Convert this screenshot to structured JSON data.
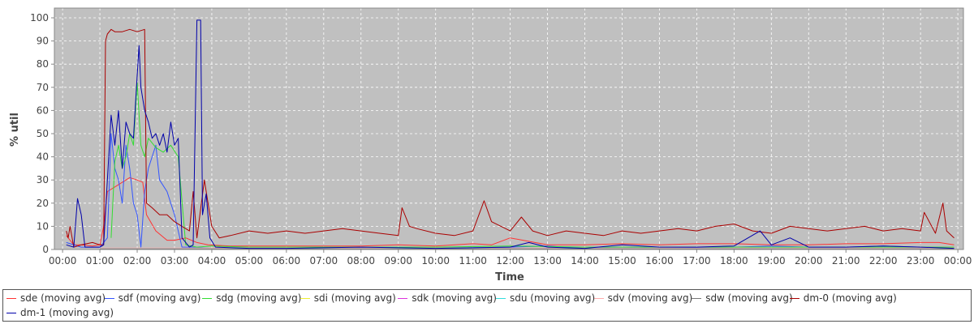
{
  "chart_data": {
    "type": "line",
    "title": "",
    "xlabel": "Time",
    "ylabel": "% util",
    "ylim": [
      0,
      100
    ],
    "xlim": [
      "00:00",
      "24:00"
    ],
    "yticks": [
      "0",
      "10",
      "20",
      "30",
      "40",
      "50",
      "60",
      "70",
      "80",
      "90",
      "100"
    ],
    "xticks": [
      "00:00",
      "01:00",
      "02:00",
      "03:00",
      "04:00",
      "05:00",
      "06:00",
      "07:00",
      "08:00",
      "09:00",
      "10:00",
      "11:00",
      "12:00",
      "13:00",
      "14:00",
      "15:00",
      "16:00",
      "17:00",
      "18:00",
      "19:00",
      "20:00",
      "21:00",
      "22:00",
      "23:00",
      "00:00"
    ],
    "grid": true,
    "legend_position": "bottom",
    "series": [
      {
        "name": "sde (moving avg)",
        "color": "#ff3333",
        "points": [
          [
            0.1,
            6
          ],
          [
            0.2,
            4
          ],
          [
            0.3,
            2
          ],
          [
            0.5,
            2
          ],
          [
            0.8,
            1.5
          ],
          [
            1.0,
            2
          ],
          [
            1.1,
            10
          ],
          [
            1.2,
            25
          ],
          [
            1.4,
            27
          ],
          [
            1.6,
            29
          ],
          [
            1.8,
            31
          ],
          [
            2.0,
            30
          ],
          [
            2.15,
            29
          ],
          [
            2.25,
            15
          ],
          [
            2.5,
            8
          ],
          [
            2.8,
            4
          ],
          [
            3.0,
            4
          ],
          [
            3.3,
            5
          ],
          [
            3.6,
            3
          ],
          [
            3.9,
            2
          ],
          [
            4.5,
            1.5
          ],
          [
            5,
            1.5
          ],
          [
            6,
            1.5
          ],
          [
            7,
            1.5
          ],
          [
            8,
            1.5
          ],
          [
            9,
            2
          ],
          [
            10,
            1.5
          ],
          [
            11,
            2.5
          ],
          [
            11.5,
            2
          ],
          [
            12,
            5
          ],
          [
            13,
            2
          ],
          [
            14,
            2
          ],
          [
            15,
            2.5
          ],
          [
            16,
            2
          ],
          [
            17,
            2.5
          ],
          [
            18,
            2.5
          ],
          [
            19,
            2
          ],
          [
            20,
            2
          ],
          [
            21,
            2.5
          ],
          [
            22,
            2.5
          ],
          [
            23,
            3
          ],
          [
            23.5,
            3
          ],
          [
            23.9,
            2
          ]
        ]
      },
      {
        "name": "sdf (moving avg)",
        "color": "#3355ff",
        "points": [
          [
            0.1,
            3
          ],
          [
            0.5,
            1
          ],
          [
            1.0,
            1
          ],
          [
            1.2,
            5
          ],
          [
            1.3,
            50
          ],
          [
            1.4,
            35
          ],
          [
            1.5,
            30
          ],
          [
            1.6,
            20
          ],
          [
            1.7,
            45
          ],
          [
            1.8,
            35
          ],
          [
            1.9,
            20
          ],
          [
            2.0,
            15
          ],
          [
            2.1,
            1
          ],
          [
            2.2,
            25
          ],
          [
            2.3,
            35
          ],
          [
            2.5,
            45
          ],
          [
            2.6,
            30
          ],
          [
            2.8,
            25
          ],
          [
            3.0,
            15
          ],
          [
            3.2,
            1
          ],
          [
            3.5,
            1
          ],
          [
            4,
            0.5
          ],
          [
            5,
            0.5
          ],
          [
            6,
            0.5
          ],
          [
            8,
            0.5
          ],
          [
            10,
            0.5
          ],
          [
            12,
            1
          ],
          [
            13,
            1.5
          ],
          [
            14,
            0.5
          ],
          [
            15,
            1
          ],
          [
            16,
            0.5
          ],
          [
            18,
            1
          ],
          [
            19,
            1.5
          ],
          [
            20,
            1
          ],
          [
            21,
            1
          ],
          [
            22,
            1.5
          ],
          [
            23,
            1
          ],
          [
            23.9,
            0.5
          ]
        ]
      },
      {
        "name": "sdg (moving avg)",
        "color": "#33dd33",
        "points": [
          [
            1.3,
            5
          ],
          [
            1.4,
            38
          ],
          [
            1.5,
            45
          ],
          [
            1.6,
            35
          ],
          [
            1.7,
            40
          ],
          [
            1.8,
            50
          ],
          [
            1.9,
            45
          ],
          [
            2.0,
            72
          ],
          [
            2.1,
            45
          ],
          [
            2.2,
            40
          ],
          [
            2.3,
            48
          ],
          [
            2.5,
            44
          ],
          [
            2.7,
            42
          ],
          [
            2.9,
            45
          ],
          [
            3.1,
            40
          ],
          [
            3.3,
            2
          ],
          [
            3.6,
            1
          ],
          [
            4,
            1.5
          ],
          [
            5,
            1
          ],
          [
            6,
            1
          ],
          [
            8,
            1
          ],
          [
            10,
            1
          ],
          [
            12,
            1.5
          ],
          [
            14,
            1
          ],
          [
            16,
            1
          ],
          [
            18,
            1
          ],
          [
            20,
            1
          ],
          [
            22,
            1
          ],
          [
            23.9,
            1
          ]
        ]
      },
      {
        "name": "sdi (moving avg)",
        "color": "#eeee33",
        "points": [
          [
            1.0,
            0.5
          ],
          [
            4,
            0.5
          ],
          [
            12,
            0.5
          ],
          [
            23.9,
            0.5
          ]
        ]
      },
      {
        "name": "sdk (moving avg)",
        "color": "#dd33dd",
        "points": [
          [
            1.0,
            0.3
          ],
          [
            4,
            0.3
          ],
          [
            12,
            0.3
          ],
          [
            23.9,
            0.3
          ]
        ]
      },
      {
        "name": "sdu (moving avg)",
        "color": "#33dddd",
        "points": [
          [
            1.0,
            0.4
          ],
          [
            4,
            0.4
          ],
          [
            12,
            0.4
          ],
          [
            23.9,
            0.4
          ]
        ]
      },
      {
        "name": "sdv (moving avg)",
        "color": "#ffaaaa",
        "points": [
          [
            1.0,
            0.6
          ],
          [
            4,
            0.6
          ],
          [
            12,
            0.6
          ],
          [
            23.9,
            0.6
          ]
        ]
      },
      {
        "name": "sdw (moving avg)",
        "color": "#777777",
        "points": [
          [
            1.0,
            0.2
          ],
          [
            4,
            0.2
          ],
          [
            12,
            0.2
          ],
          [
            23.9,
            0.2
          ]
        ]
      },
      {
        "name": "dm-0 (moving avg)",
        "color": "#aa0000",
        "points": [
          [
            0.1,
            8
          ],
          [
            0.15,
            5
          ],
          [
            0.2,
            10
          ],
          [
            0.3,
            1
          ],
          [
            0.5,
            2
          ],
          [
            0.8,
            3
          ],
          [
            1.0,
            2
          ],
          [
            1.1,
            2
          ],
          [
            1.15,
            90
          ],
          [
            1.2,
            93
          ],
          [
            1.3,
            95
          ],
          [
            1.4,
            94
          ],
          [
            1.6,
            94
          ],
          [
            1.8,
            95
          ],
          [
            2.0,
            94
          ],
          [
            2.2,
            95
          ],
          [
            2.25,
            20
          ],
          [
            2.4,
            18
          ],
          [
            2.6,
            15
          ],
          [
            2.8,
            15
          ],
          [
            3.0,
            12
          ],
          [
            3.2,
            10
          ],
          [
            3.4,
            8
          ],
          [
            3.5,
            25
          ],
          [
            3.6,
            5
          ],
          [
            3.8,
            30
          ],
          [
            3.9,
            20
          ],
          [
            4.0,
            10
          ],
          [
            4.2,
            5
          ],
          [
            4.5,
            6
          ],
          [
            5,
            8
          ],
          [
            5.5,
            7
          ],
          [
            6,
            8
          ],
          [
            6.5,
            7
          ],
          [
            7,
            8
          ],
          [
            7.5,
            9
          ],
          [
            8,
            8
          ],
          [
            8.5,
            7
          ],
          [
            9,
            6
          ],
          [
            9.1,
            18
          ],
          [
            9.3,
            10
          ],
          [
            9.5,
            9
          ],
          [
            10,
            7
          ],
          [
            10.5,
            6
          ],
          [
            11,
            8
          ],
          [
            11.3,
            21
          ],
          [
            11.5,
            12
          ],
          [
            12,
            8
          ],
          [
            12.3,
            14
          ],
          [
            12.6,
            8
          ],
          [
            13,
            6
          ],
          [
            13.5,
            8
          ],
          [
            14,
            7
          ],
          [
            14.5,
            6
          ],
          [
            15,
            8
          ],
          [
            15.5,
            7
          ],
          [
            16,
            8
          ],
          [
            16.5,
            9
          ],
          [
            17,
            8
          ],
          [
            17.5,
            10
          ],
          [
            18,
            11
          ],
          [
            18.5,
            8
          ],
          [
            19,
            7
          ],
          [
            19.5,
            10
          ],
          [
            20,
            9
          ],
          [
            20.5,
            8
          ],
          [
            21,
            9
          ],
          [
            21.5,
            10
          ],
          [
            22,
            8
          ],
          [
            22.5,
            9
          ],
          [
            23,
            8
          ],
          [
            23.1,
            16
          ],
          [
            23.4,
            7
          ],
          [
            23.6,
            20
          ],
          [
            23.7,
            8
          ],
          [
            23.9,
            5
          ]
        ]
      },
      {
        "name": "dm-1 (moving avg)",
        "color": "#0000aa",
        "points": [
          [
            0.1,
            2
          ],
          [
            0.3,
            1
          ],
          [
            0.4,
            22
          ],
          [
            0.5,
            15
          ],
          [
            0.6,
            1
          ],
          [
            1.0,
            1
          ],
          [
            1.1,
            2
          ],
          [
            1.2,
            30
          ],
          [
            1.3,
            58
          ],
          [
            1.4,
            45
          ],
          [
            1.5,
            60
          ],
          [
            1.6,
            35
          ],
          [
            1.7,
            55
          ],
          [
            1.8,
            50
          ],
          [
            1.9,
            48
          ],
          [
            2.0,
            75
          ],
          [
            2.05,
            88
          ],
          [
            2.1,
            70
          ],
          [
            2.2,
            60
          ],
          [
            2.3,
            55
          ],
          [
            2.4,
            48
          ],
          [
            2.5,
            50
          ],
          [
            2.6,
            45
          ],
          [
            2.7,
            50
          ],
          [
            2.8,
            42
          ],
          [
            2.9,
            55
          ],
          [
            3.0,
            45
          ],
          [
            3.1,
            48
          ],
          [
            3.2,
            5
          ],
          [
            3.4,
            1
          ],
          [
            3.5,
            2
          ],
          [
            3.6,
            99
          ],
          [
            3.7,
            99
          ],
          [
            3.75,
            15
          ],
          [
            3.85,
            24
          ],
          [
            3.95,
            5
          ],
          [
            4.1,
            1
          ],
          [
            5,
            0.5
          ],
          [
            6,
            0.5
          ],
          [
            8,
            1
          ],
          [
            10,
            0.5
          ],
          [
            12,
            1
          ],
          [
            12.5,
            3
          ],
          [
            13,
            1
          ],
          [
            14,
            0.5
          ],
          [
            15,
            2
          ],
          [
            16,
            1
          ],
          [
            17,
            1
          ],
          [
            18,
            1.5
          ],
          [
            18.7,
            8
          ],
          [
            19,
            2
          ],
          [
            19.5,
            5
          ],
          [
            20,
            1
          ],
          [
            21,
            1
          ],
          [
            22,
            1.5
          ],
          [
            23,
            1
          ],
          [
            23.9,
            0.5
          ]
        ]
      }
    ]
  }
}
